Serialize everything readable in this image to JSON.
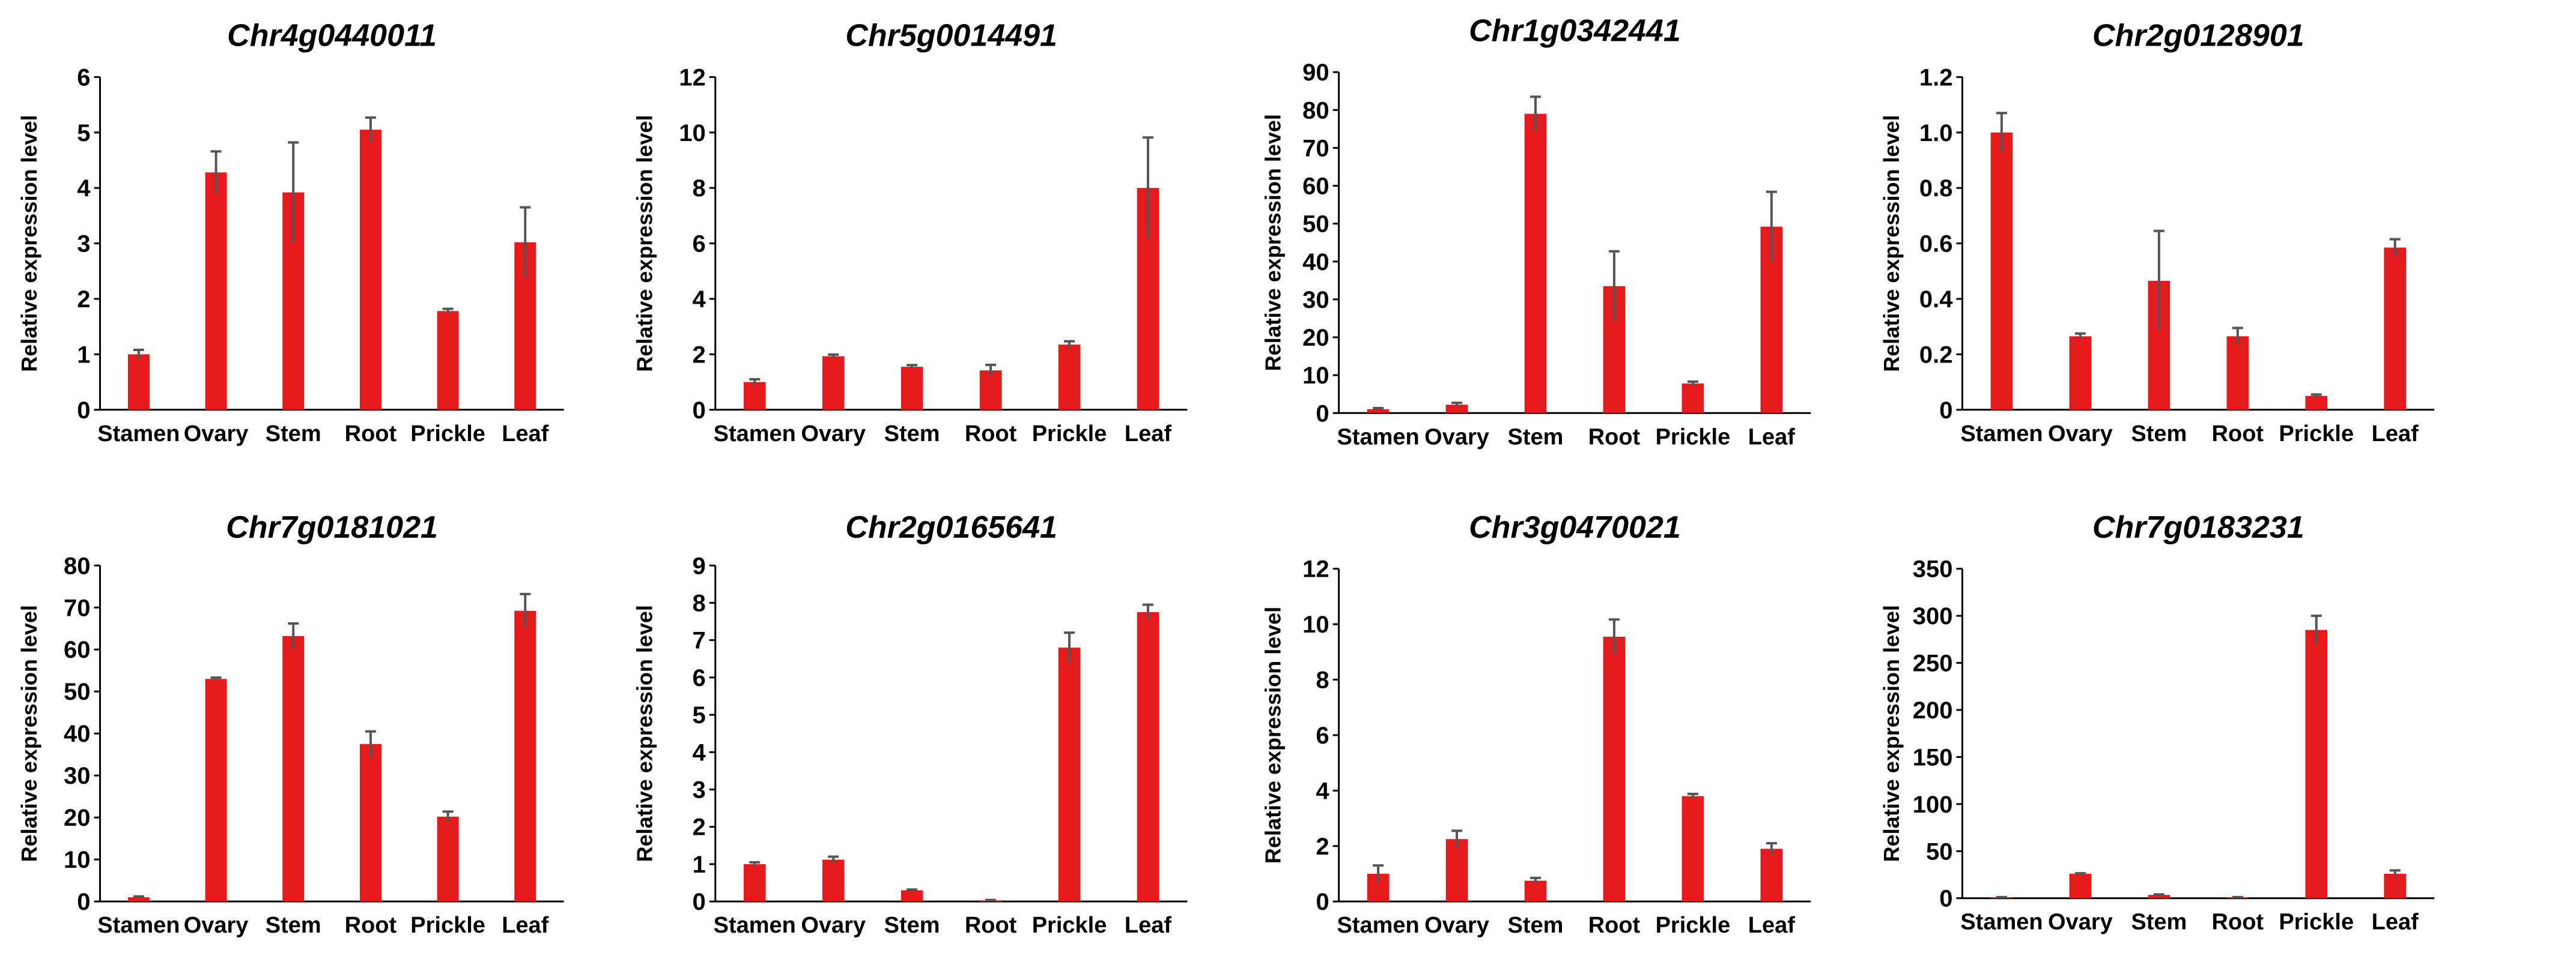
{
  "style": {
    "bar_color": "#e41a1c",
    "error_color": "#555555",
    "axis_color": "#000000"
  },
  "chart_data": [
    {
      "type": "bar",
      "title": "Chr4g0440011",
      "ylabel": "Relative expression level",
      "categories": [
        "Stamen",
        "Ovary",
        "Stem",
        "Root",
        "Prickle",
        "Leaf"
      ],
      "values": [
        1.0,
        4.28,
        3.92,
        5.05,
        1.78,
        3.02
      ],
      "errors": [
        0.08,
        0.38,
        0.9,
        0.22,
        0.04,
        0.63
      ],
      "ylim": [
        0,
        6
      ],
      "yticks": [
        "0",
        "1",
        "2",
        "3",
        "4",
        "5",
        "6"
      ]
    },
    {
      "type": "bar",
      "title": "Chr5g0014491",
      "ylabel": "Relative expression level",
      "categories": [
        "Stamen",
        "Ovary",
        "Stem",
        "Root",
        "Prickle",
        "Leaf"
      ],
      "values": [
        1.0,
        1.93,
        1.55,
        1.42,
        2.35,
        8.0
      ],
      "errors": [
        0.1,
        0.06,
        0.06,
        0.2,
        0.12,
        1.82
      ],
      "ylim": [
        0,
        12
      ],
      "yticks": [
        "0",
        "2",
        "4",
        "6",
        "8",
        "10",
        "12"
      ]
    },
    {
      "type": "bar",
      "title": "Chr1g0342441",
      "ylabel": "Relative expression level",
      "categories": [
        "Stamen",
        "Ovary",
        "Stem",
        "Root",
        "Prickle",
        "Leaf"
      ],
      "values": [
        1.0,
        2.2,
        79.0,
        33.5,
        7.8,
        49.2
      ],
      "errors": [
        0.3,
        0.5,
        4.5,
        9.2,
        0.5,
        9.2
      ],
      "ylim": [
        0,
        90
      ],
      "yticks": [
        "0",
        "10",
        "20",
        "30",
        "40",
        "50",
        "60",
        "70",
        "80",
        "90"
      ]
    },
    {
      "type": "bar",
      "title": "Chr2g0128901",
      "ylabel": "Relative expression level",
      "categories": [
        "Stamen",
        "Ovary",
        "Stem",
        "Root",
        "Prickle",
        "Leaf"
      ],
      "values": [
        1.0,
        0.265,
        0.465,
        0.265,
        0.05,
        0.585
      ],
      "errors": [
        0.07,
        0.01,
        0.18,
        0.03,
        0.005,
        0.03
      ],
      "ylim": [
        0,
        1.2
      ],
      "yticks": [
        "0",
        "0.2",
        "0.4",
        "0.6",
        "0.8",
        "1.0",
        "1.2"
      ]
    },
    {
      "type": "bar",
      "title": "Chr7g0181021",
      "ylabel": "Relative expression level",
      "categories": [
        "Stamen",
        "Ovary",
        "Stem",
        "Root",
        "Prickle",
        "Leaf"
      ],
      "values": [
        1.0,
        53.0,
        63.2,
        37.5,
        20.2,
        69.2
      ],
      "errors": [
        0.2,
        0.3,
        3.0,
        3.0,
        1.2,
        4.0
      ],
      "ylim": [
        0,
        80
      ],
      "yticks": [
        "0",
        "10",
        "20",
        "30",
        "40",
        "50",
        "60",
        "70",
        "80"
      ]
    },
    {
      "type": "bar",
      "title": "Chr2g0165641",
      "ylabel": "Relative expression level",
      "categories": [
        "Stamen",
        "Ovary",
        "Stem",
        "Root",
        "Prickle",
        "Leaf"
      ],
      "values": [
        1.0,
        1.12,
        0.3,
        0.03,
        6.8,
        7.75
      ],
      "errors": [
        0.05,
        0.08,
        0.02,
        0.01,
        0.4,
        0.2
      ],
      "ylim": [
        0,
        9
      ],
      "yticks": [
        "0",
        "1",
        "2",
        "3",
        "4",
        "5",
        "6",
        "7",
        "8",
        "9"
      ]
    },
    {
      "type": "bar",
      "title": "Chr3g0470021",
      "ylabel": "Relative expression level",
      "categories": [
        "Stamen",
        "Ovary",
        "Stem",
        "Root",
        "Prickle",
        "Leaf"
      ],
      "values": [
        1.0,
        2.25,
        0.75,
        9.55,
        3.8,
        1.9
      ],
      "errors": [
        0.3,
        0.3,
        0.1,
        0.62,
        0.08,
        0.2
      ],
      "ylim": [
        0,
        12
      ],
      "yticks": [
        "0",
        "2",
        "4",
        "6",
        "8",
        "10",
        "12"
      ]
    },
    {
      "type": "bar",
      "title": "Chr7g0183231",
      "ylabel": "Relative expression level",
      "categories": [
        "Stamen",
        "Ovary",
        "Stem",
        "Root",
        "Prickle",
        "Leaf"
      ],
      "values": [
        1.0,
        26.0,
        3.5,
        1.0,
        285.0,
        26.0
      ],
      "errors": [
        0.2,
        0.5,
        0.5,
        0.2,
        15.0,
        3.5
      ],
      "ylim": [
        0,
        350
      ],
      "yticks": [
        "0",
        "50",
        "100",
        "150",
        "200",
        "250",
        "300",
        "350"
      ]
    }
  ]
}
